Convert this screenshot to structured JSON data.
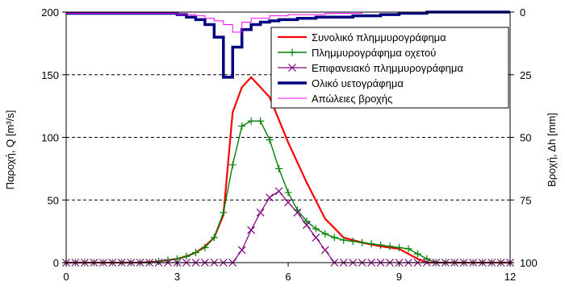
{
  "chart_data": {
    "type": "line",
    "title": "",
    "ylabel": "Παροχή, Q [m³/s]",
    "y2label": "Βροχή, Δh [mm]",
    "xlim": [
      0,
      12
    ],
    "ylim": [
      0,
      200
    ],
    "y2lim": [
      0,
      100
    ],
    "y2_inverted": true,
    "xticks": [
      "0",
      "3",
      "6",
      "9",
      "12"
    ],
    "yticks": [
      "0",
      "50",
      "100",
      "150",
      "200"
    ],
    "y2ticks": [
      "0",
      "25",
      "50",
      "75",
      "100"
    ],
    "grid": "horizontal",
    "legend_position": "top-right",
    "series": [
      {
        "name": "Συνολικό πλημμυρογράφημα",
        "color": "#ff0000",
        "marker": "none",
        "axis": "left",
        "x": [
          0,
          1,
          2,
          2.5,
          3,
          3.25,
          3.5,
          3.75,
          4,
          4.25,
          4.5,
          4.75,
          5,
          5.25,
          5.5,
          6,
          6.5,
          7,
          7.5,
          8,
          8.5,
          9,
          9.25,
          9.5,
          9.75,
          12
        ],
        "y": [
          0,
          0,
          0,
          1,
          3,
          5,
          8,
          13,
          20,
          38,
          120,
          140,
          148,
          140,
          132,
          96,
          64,
          35,
          20,
          16,
          13,
          11,
          7,
          3,
          0,
          0
        ]
      },
      {
        "name": "Πλημμυρογράφημα οχετού",
        "color": "#008000",
        "marker": "plus",
        "axis": "left",
        "x": [
          0,
          0.25,
          0.5,
          0.75,
          1,
          1.25,
          1.5,
          1.75,
          2,
          2.25,
          2.5,
          2.75,
          3,
          3.25,
          3.5,
          3.75,
          4,
          4.25,
          4.5,
          4.75,
          5,
          5.25,
          5.5,
          5.75,
          6,
          6.25,
          6.5,
          6.75,
          7,
          7.25,
          7.5,
          7.75,
          8,
          8.25,
          8.5,
          8.75,
          9,
          9.25,
          9.5,
          9.75,
          10,
          10.25,
          10.5,
          10.75,
          11,
          11.25,
          11.5,
          11.75,
          12
        ],
        "y": [
          0,
          0,
          0,
          0,
          0,
          0,
          0,
          0,
          0,
          0,
          1,
          2,
          3,
          5,
          8,
          12,
          20,
          40,
          78,
          109,
          113,
          113,
          98,
          75,
          56,
          42,
          33,
          27,
          23,
          20,
          18,
          17,
          16,
          15,
          14,
          13,
          12,
          11,
          7,
          3,
          0,
          0,
          0,
          0,
          0,
          0,
          0,
          0,
          0
        ]
      },
      {
        "name": "Επιφανειακό πλημμυρογράφημα",
        "color": "#800080",
        "marker": "x",
        "axis": "left",
        "x": [
          0,
          0.25,
          0.5,
          0.75,
          1,
          1.25,
          1.5,
          1.75,
          2,
          2.25,
          2.5,
          2.75,
          3,
          3.25,
          3.5,
          3.75,
          4,
          4.25,
          4.5,
          4.75,
          5,
          5.25,
          5.5,
          5.75,
          6,
          6.25,
          6.5,
          6.75,
          7,
          7.25,
          7.5,
          7.75,
          8,
          8.25,
          8.5,
          8.75,
          9,
          9.25,
          9.5,
          9.75,
          10,
          10.25,
          10.5,
          10.75,
          11,
          11.25,
          11.5,
          11.75,
          12
        ],
        "y": [
          0,
          0,
          0,
          0,
          0,
          0,
          0,
          0,
          0,
          0,
          0,
          0,
          0,
          0,
          0,
          0,
          0,
          0,
          0,
          10,
          26,
          40,
          52,
          57,
          48,
          40,
          30,
          20,
          10,
          0,
          0,
          0,
          0,
          0,
          0,
          0,
          0,
          0,
          0,
          0,
          0,
          0,
          0,
          0,
          0,
          0,
          0,
          0,
          0
        ]
      },
      {
        "name": "Ολικό υετογράφημα",
        "color": "#000080",
        "marker": "none",
        "axis": "right",
        "step": true,
        "x": [
          0,
          3,
          3.25,
          3.5,
          3.75,
          4,
          4.25,
          4.5,
          4.75,
          5,
          5.25,
          5.5,
          5.75,
          6,
          6.25,
          6.5,
          6.75,
          7,
          7.25,
          7.5,
          7.75,
          8,
          8.25,
          8.5,
          8.75,
          9,
          9.25,
          9.5,
          9.75,
          12
        ],
        "y": [
          0.5,
          1,
          2,
          3,
          5,
          10,
          26,
          14,
          7,
          5,
          4,
          3.5,
          3,
          3,
          2.5,
          2.5,
          2,
          2,
          2,
          2,
          1.5,
          1.5,
          1.5,
          1,
          1,
          0.5,
          0.5,
          0.5,
          0,
          0
        ]
      },
      {
        "name": "Απώλειες βροχής",
        "color": "#ff00ff",
        "marker": "none",
        "axis": "right",
        "step": true,
        "x": [
          0,
          3,
          3.5,
          3.75,
          4,
          4.25,
          4.5,
          4.75,
          5,
          5.5,
          6,
          7,
          8,
          12
        ],
        "y": [
          0.5,
          1,
          1.5,
          2.5,
          3.5,
          5,
          8,
          4,
          2.5,
          1.5,
          1,
          0.5,
          0,
          0
        ]
      }
    ]
  }
}
